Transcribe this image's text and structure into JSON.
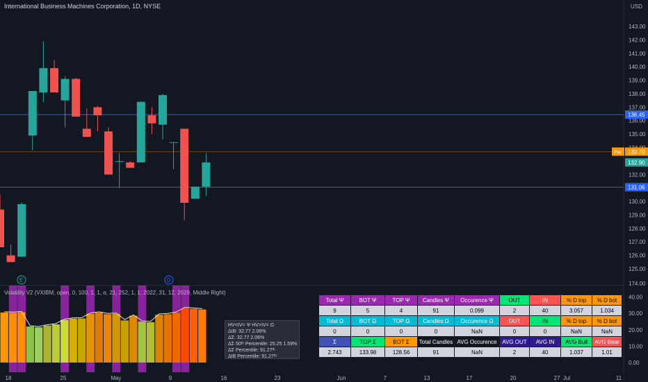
{
  "header": {
    "title": "International Business Machines Corporation, 1D, NYSE",
    "currency": "USD"
  },
  "price_axis": {
    "ticks": [
      "143.00",
      "142.00",
      "141.00",
      "140.00",
      "139.00",
      "138.00",
      "137.00",
      "136.00",
      "135.00",
      "134.00",
      "133.00",
      "132.00",
      "131.00",
      "130.00",
      "129.00",
      "128.00",
      "127.00",
      "126.00",
      "125.00"
    ]
  },
  "price_labels": {
    "blue_high": "136.45",
    "pre_tag": "Pre",
    "pre_value": "133.70",
    "last": "132.90",
    "blue_low": "131.06"
  },
  "indicator": {
    "title": "Volatility V2 (VXIBM, open, 0, 100, 1, 1, α, 21, 252, 1, 1, 2022, 31, 12, 2029, Middle Right)",
    "axis_ticks": [
      "174.00",
      "40.00",
      "30.00",
      "20.00",
      "10.00",
      "0.00"
    ],
    "info_lines": [
      "HV<IV= Ψ  HV>IV= Ω",
      "ΔIB: 32.77  2.06%",
      "ΔΣ: 32.77  2.06%",
      "ΔΣ 50ᵗʰ Percentile: 25.25  1.59%",
      "ΔΣ Percentile: 91.27ᵗʰ",
      "ΔIB Percentile: 91.27ᵗʰ"
    ]
  },
  "events": {
    "earnings": "E",
    "dividend": "D"
  },
  "time_axis": {
    "labels": [
      "18",
      "25",
      "May",
      "9",
      "16",
      "23",
      "Jun",
      "7",
      "13",
      "17",
      "20",
      "27",
      "Jul",
      "11"
    ]
  },
  "stats_table": {
    "rows": [
      [
        [
          "Total Ψ",
          "#9c27b0",
          "#fff"
        ],
        [
          "BOT Ψ",
          "#9c27b0",
          "#fff"
        ],
        [
          "TOP Ψ",
          "#9c27b0",
          "#fff"
        ],
        [
          "Candles Ψ",
          "#9c27b0",
          "#fff"
        ],
        [
          "Occurence Ψ",
          "#9c27b0",
          "#fff"
        ],
        [
          "OUT",
          "#00e676",
          "#000"
        ],
        [
          "IN",
          "#ff5252",
          "#fff"
        ],
        [
          "% D top",
          "#ff9800",
          "#000"
        ],
        [
          "% D bot",
          "#ff9800",
          "#000"
        ]
      ],
      [
        [
          "9",
          "#d1d4dc",
          "#000"
        ],
        [
          "5",
          "#d1d4dc",
          "#000"
        ],
        [
          "4",
          "#d1d4dc",
          "#000"
        ],
        [
          "91",
          "#d1d4dc",
          "#000"
        ],
        [
          "0.099",
          "#d1d4dc",
          "#000"
        ],
        [
          "2",
          "#d1d4dc",
          "#000"
        ],
        [
          "40",
          "#d1d4dc",
          "#000"
        ],
        [
          "3.057",
          "#d1d4dc",
          "#000"
        ],
        [
          "1.034",
          "#d1d4dc",
          "#000"
        ]
      ],
      [
        [
          "Total Ω",
          "#00bcd4",
          "#fff"
        ],
        [
          "BOT Ω",
          "#00bcd4",
          "#fff"
        ],
        [
          "TOP Ω",
          "#00bcd4",
          "#fff"
        ],
        [
          "Candles Ω",
          "#00bcd4",
          "#fff"
        ],
        [
          "Occurence Ω",
          "#00bcd4",
          "#fff"
        ],
        [
          "OUT",
          "#ff5252",
          "#fff"
        ],
        [
          "IN",
          "#00e676",
          "#000"
        ],
        [
          "% D top",
          "#ff9800",
          "#000"
        ],
        [
          "% D bot",
          "#ff9800",
          "#000"
        ]
      ],
      [
        [
          "0",
          "#d1d4dc",
          "#000"
        ],
        [
          "0",
          "#d1d4dc",
          "#000"
        ],
        [
          "0",
          "#d1d4dc",
          "#000"
        ],
        [
          "0",
          "#d1d4dc",
          "#000"
        ],
        [
          "NaN",
          "#d1d4dc",
          "#000"
        ],
        [
          "0",
          "#d1d4dc",
          "#000"
        ],
        [
          "0",
          "#d1d4dc",
          "#000"
        ],
        [
          "NaN",
          "#d1d4dc",
          "#000"
        ],
        [
          "NaN",
          "#d1d4dc",
          "#000"
        ]
      ],
      [
        [
          "Σ",
          "#3f51b5",
          "#fff"
        ],
        [
          "TOP Σ",
          "#00e676",
          "#000"
        ],
        [
          "BOT Σ",
          "#ff9800",
          "#000"
        ],
        [
          "Total Candles",
          "#131722",
          "#fff"
        ],
        [
          "AVG Occurence",
          "#131722",
          "#fff"
        ],
        [
          "AVG OUT",
          "#311b92",
          "#fff"
        ],
        [
          "AVG IN",
          "#311b92",
          "#fff"
        ],
        [
          "AVG Bull",
          "#00e676",
          "#000"
        ],
        [
          "AVG Bear",
          "#ff5252",
          "#fff"
        ]
      ],
      [
        [
          "2.743",
          "#d1d4dc",
          "#000"
        ],
        [
          "133.98",
          "#d1d4dc",
          "#000"
        ],
        [
          "128.56",
          "#d1d4dc",
          "#000"
        ],
        [
          "91",
          "#d1d4dc",
          "#000"
        ],
        [
          "NaN",
          "#d1d4dc",
          "#000"
        ],
        [
          "2",
          "#d1d4dc",
          "#000"
        ],
        [
          "40",
          "#d1d4dc",
          "#000"
        ],
        [
          "1.037",
          "#d1d4dc",
          "#000"
        ],
        [
          "1.01",
          "#d1d4dc",
          "#000"
        ]
      ]
    ]
  },
  "chart_data": {
    "type": "candlestick",
    "candles": [
      {
        "o": 129.4,
        "h": 130.5,
        "l": 126.6,
        "c": 126.6,
        "color": "#ef5350"
      },
      {
        "o": 126.0,
        "h": 126.8,
        "l": 125.5,
        "c": 125.5,
        "color": "#ef5350"
      },
      {
        "o": 125.9,
        "h": 129.9,
        "l": 125.9,
        "c": 129.8,
        "color": "#26a69a"
      },
      {
        "o": 134.9,
        "h": 138.2,
        "l": 133.8,
        "c": 138.2,
        "color": "#26a69a"
      },
      {
        "o": 138.1,
        "h": 141.9,
        "l": 137.4,
        "c": 139.9,
        "color": "#26a69a"
      },
      {
        "o": 139.9,
        "h": 140.5,
        "l": 138.1,
        "c": 138.1,
        "color": "#ef5350"
      },
      {
        "o": 137.5,
        "h": 139.3,
        "l": 135.5,
        "c": 139.1,
        "color": "#26a69a"
      },
      {
        "o": 139.1,
        "h": 139.2,
        "l": 136.3,
        "c": 136.3,
        "color": "#ef5350"
      },
      {
        "o": 135.4,
        "h": 136.9,
        "l": 134.8,
        "c": 134.8,
        "color": "#ef5350"
      },
      {
        "o": 136.4,
        "h": 137.1,
        "l": 135.2,
        "c": 137.0,
        "color": "#ef5350"
      },
      {
        "o": 135.2,
        "h": 135.5,
        "l": 132.0,
        "c": 132.0,
        "color": "#ef5350"
      },
      {
        "o": 133.0,
        "h": 133.6,
        "l": 131.0,
        "c": 133.0,
        "color": "#26a69a"
      },
      {
        "o": 132.9,
        "h": 133.0,
        "l": 132.5,
        "c": 132.5,
        "color": "#ef5350"
      },
      {
        "o": 132.9,
        "h": 137.4,
        "l": 132.9,
        "c": 137.4,
        "color": "#26a69a"
      },
      {
        "o": 136.4,
        "h": 137.0,
        "l": 135.0,
        "c": 135.8,
        "color": "#ef5350"
      },
      {
        "o": 135.7,
        "h": 138.0,
        "l": 134.6,
        "c": 137.9,
        "color": "#26a69a"
      },
      {
        "o": 134.4,
        "h": 134.4,
        "l": 132.4,
        "c": 134.4,
        "color": "#26a69a"
      },
      {
        "o": 135.4,
        "h": 135.4,
        "l": 128.6,
        "c": 129.9,
        "color": "#ef5350"
      },
      {
        "o": 130.2,
        "h": 131.1,
        "l": 130.2,
        "c": 131.1,
        "color": "#26a69a"
      },
      {
        "o": 131.1,
        "h": 133.6,
        "l": 130.4,
        "c": 132.9,
        "color": "#26a69a"
      }
    ],
    "indicator_bars": [
      30.5,
      30.3,
      30.7,
      22.0,
      21.5,
      22.6,
      23.3,
      26.0,
      26.8,
      26.9,
      29.7,
      30.5,
      29.5,
      29.7,
      25.7,
      28.6,
      25.0,
      24.6,
      29.2,
      29.5,
      30.4,
      33.2,
      32.8,
      32.4
    ],
    "indicator_colors": [
      "#ff9800",
      "#ff8f00",
      "#ff8f00",
      "#8bc34a",
      "#9ccc65",
      "#afb42b",
      "#c0ca33",
      "#cddc39",
      "#d4b000",
      "#c6a700",
      "#e59400",
      "#e07a00",
      "#ec8600",
      "#d09800",
      "#c5a000",
      "#dd8800",
      "#a2c43a",
      "#b2bf30",
      "#e08200",
      "#e07500",
      "#ee6a00",
      "#ff4a00",
      "#ff6000",
      "#ff7a00"
    ],
    "indicator_highlight_cols": [
      1,
      2,
      7,
      10,
      13,
      16,
      20,
      21
    ]
  }
}
